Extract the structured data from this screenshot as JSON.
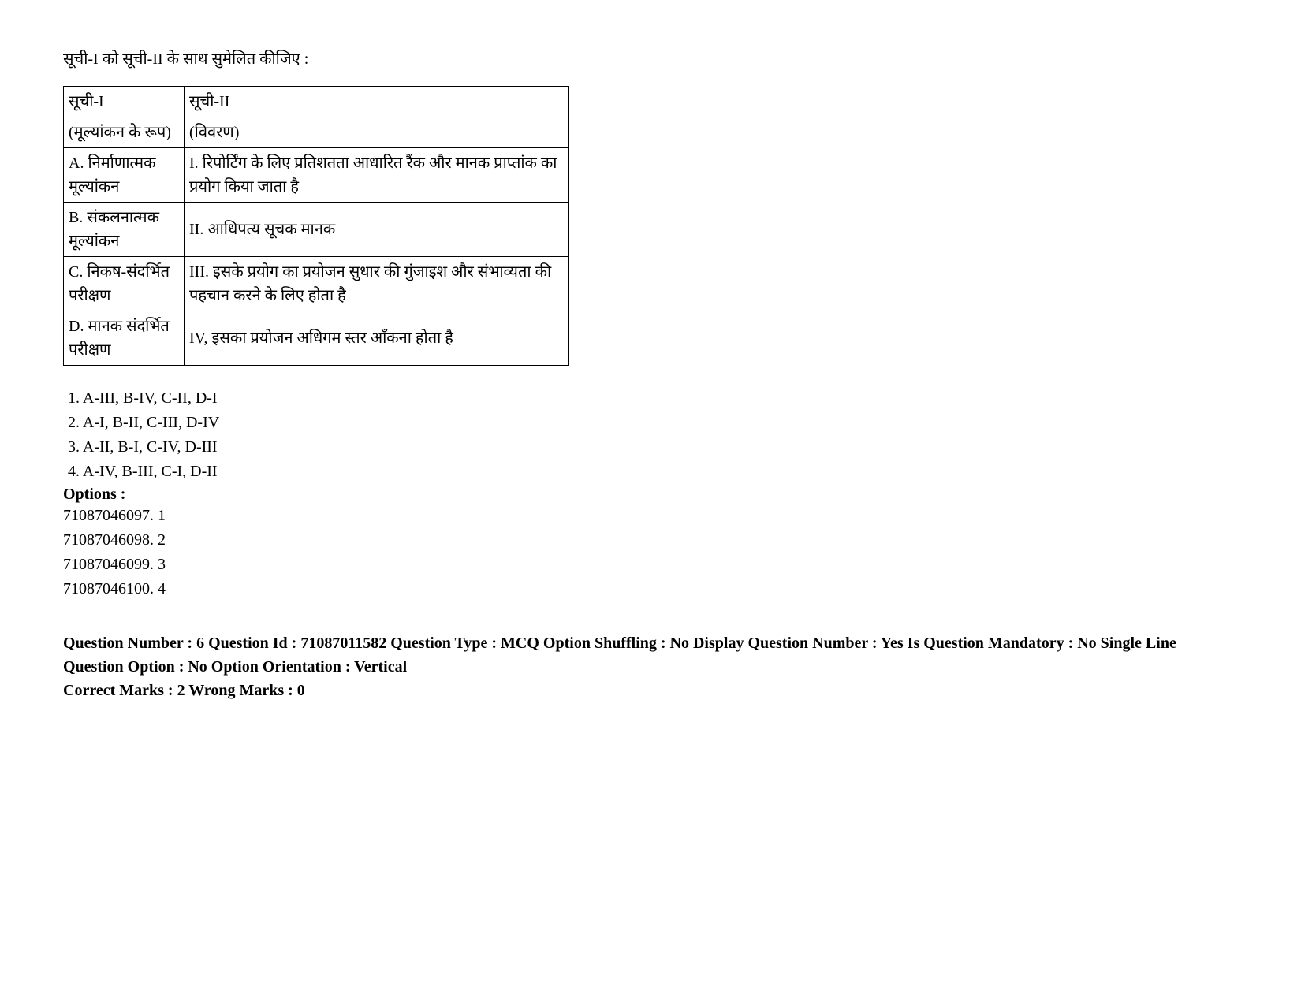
{
  "instruction": "सूची-I को सूची-II के साथ सुमेलित कीजिए :",
  "table": {
    "rows": [
      {
        "c1": "सूची-I",
        "c2": "सूची-II"
      },
      {
        "c1": "(मूल्यांकन के रूप)",
        "c2": "(विवरण)"
      },
      {
        "c1": "A. निर्माणात्मक मूल्यांकन",
        "c2": "I. रिपोर्टिंग के लिए प्रतिशतता आधारित रैंक और मानक प्राप्तांक का प्रयोग किया जाता है"
      },
      {
        "c1": "B. संकलनात्मक मूल्यांकन",
        "c2": "II. आधिपत्य सूचक मानक"
      },
      {
        "c1": "C. निकष-संदर्भित परीक्षण",
        "c2": "III. इसके प्रयोग का प्रयोजन सुधार की गुंजाइश और संभाव्यता की पहचान करने के लिए होता है"
      },
      {
        "c1": "D. मानक संदर्भित परीक्षण",
        "c2": "IV, इसका प्रयोजन अधिगम स्तर आँकना होता है"
      }
    ]
  },
  "choices": [
    "1. A-III, B-IV, C-II, D-I",
    "2. A-I, B-II, C-III, D-IV",
    "3. A-II, B-I, C-IV, D-III",
    "4. A-IV, B-III, C-I, D-II"
  ],
  "options_label": "Options :",
  "options": [
    "71087046097. 1",
    "71087046098. 2",
    "71087046099. 3",
    "71087046100. 4"
  ],
  "meta_line1": "Question Number : 6 Question Id : 71087011582 Question Type : MCQ Option Shuffling : No Display Question Number : Yes Is Question Mandatory : No Single Line Question Option : No Option Orientation : Vertical",
  "meta_line2": "Correct Marks : 2 Wrong Marks : 0"
}
